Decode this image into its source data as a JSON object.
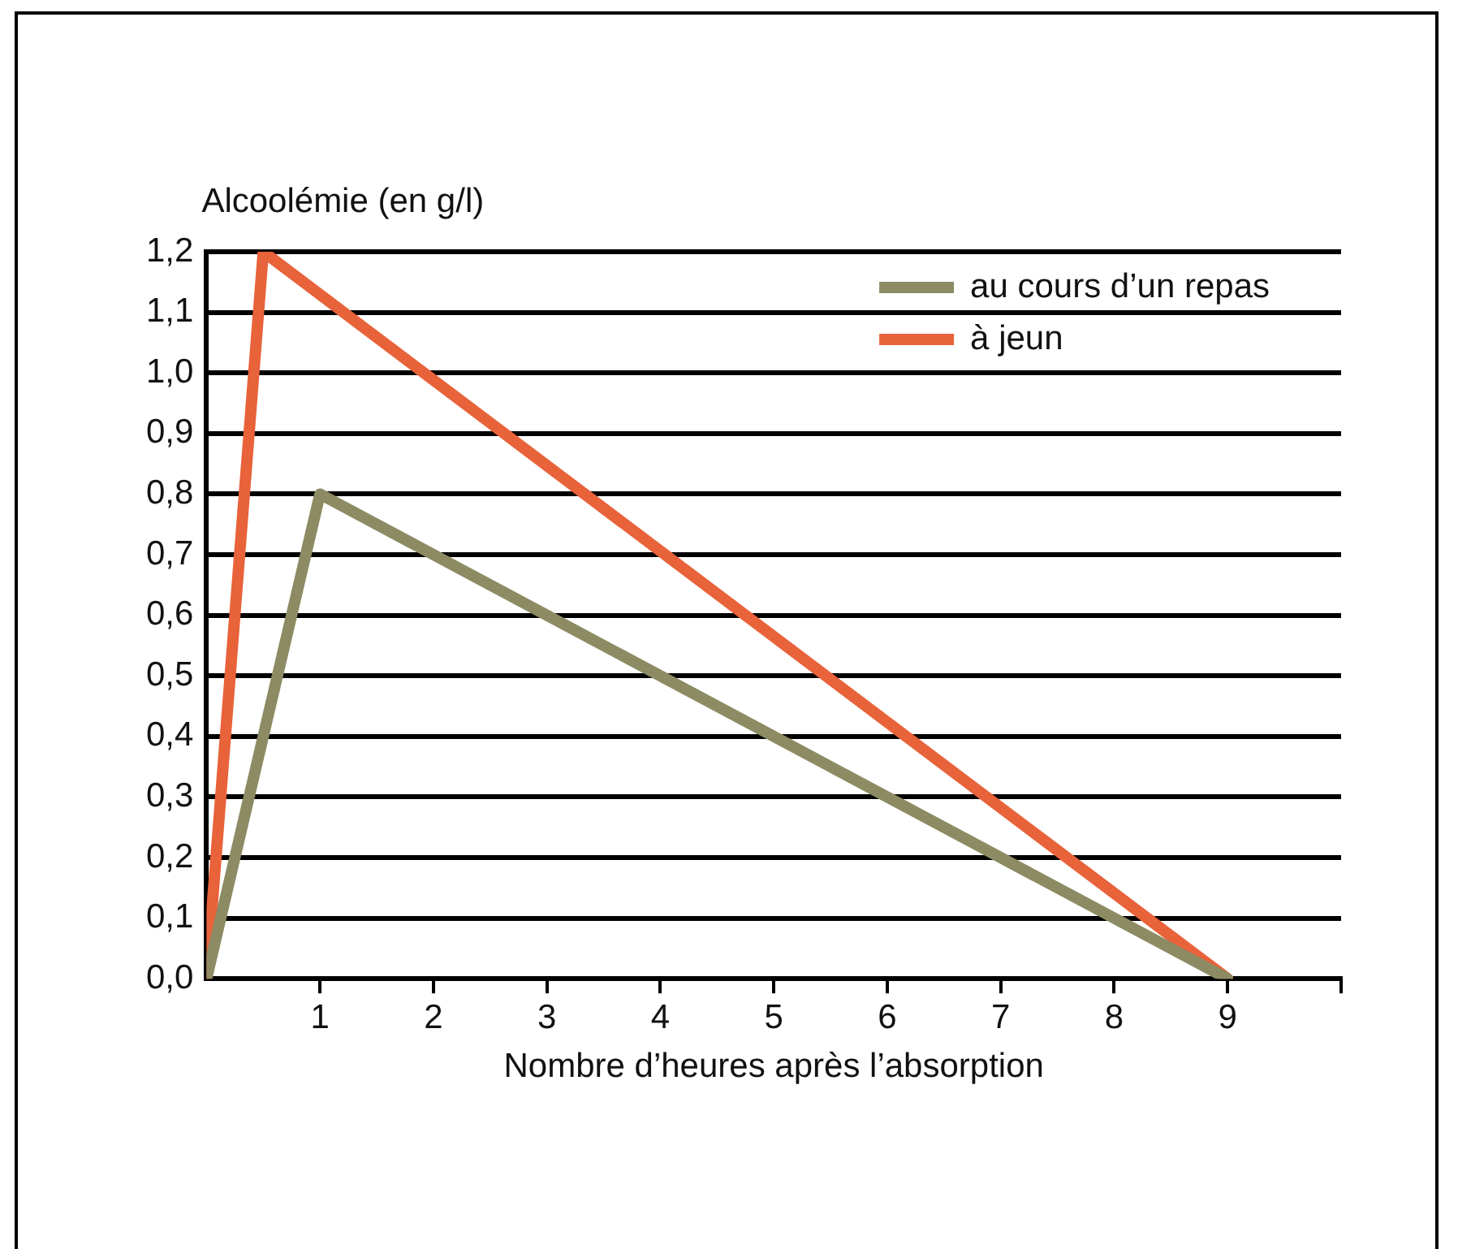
{
  "chart_data": {
    "type": "line",
    "ylabel": "Alcoolémie (en g/l)",
    "xlabel": "Nombre d’heures après l’absorption",
    "series": [
      {
        "name": "au cours d’un repas",
        "color": "#8c8b63",
        "x": [
          0,
          1,
          9
        ],
        "values": [
          0,
          0.8,
          0
        ]
      },
      {
        "name": "à jeun",
        "color": "#e8623a",
        "x": [
          0,
          0.5,
          9
        ],
        "values": [
          0,
          1.2,
          0
        ]
      }
    ],
    "xlim": [
      0,
      10
    ],
    "xticks": [
      1,
      2,
      3,
      4,
      5,
      6,
      7,
      8,
      9,
      {
        "value": 10,
        "label": null
      }
    ],
    "ylim": [
      0,
      1.2
    ],
    "yticks": [
      {
        "value": 0,
        "label": "0,0"
      },
      {
        "value": 0.1,
        "label": "0,1"
      },
      {
        "value": 0.2,
        "label": "0,2"
      },
      {
        "value": 0.3,
        "label": "0,3"
      },
      {
        "value": 0.4,
        "label": "0,4"
      },
      {
        "value": 0.5,
        "label": "0,5"
      },
      {
        "value": 0.6,
        "label": "0,6"
      },
      {
        "value": 0.7,
        "label": "0,7"
      },
      {
        "value": 0.8,
        "label": "0,8"
      },
      {
        "value": 0.9,
        "label": "0,9"
      },
      {
        "value": 1.0,
        "label": "1,0"
      },
      {
        "value": 1.1,
        "label": "1,1"
      },
      {
        "value": 1.2,
        "label": "1,2"
      }
    ],
    "grid": "y",
    "legend": "top right",
    "marker": "none",
    "line_style": "solid"
  }
}
